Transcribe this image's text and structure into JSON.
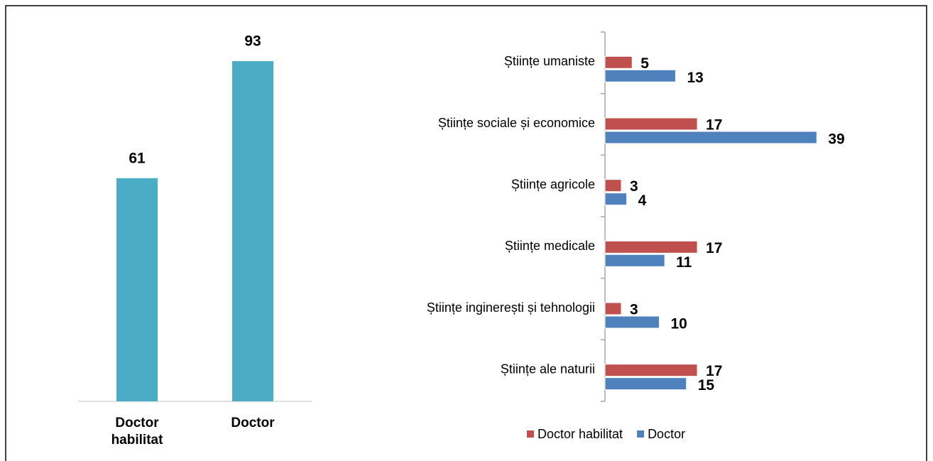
{
  "chart_data": [
    {
      "type": "bar",
      "categories": [
        "Doctor habilitat",
        "Doctor"
      ],
      "values": [
        61,
        93
      ],
      "color": "#4bacc6"
    },
    {
      "type": "hbar",
      "categories": [
        "Științe umaniste",
        "Științe sociale și economice",
        "Științe agricole",
        "Științe medicale",
        "Științe inginerești și tehnologii",
        "Științe ale naturii"
      ],
      "series": [
        {
          "name": "Doctor habilitat",
          "color": "#c0504d",
          "values": [
            5,
            17,
            3,
            17,
            3,
            17
          ]
        },
        {
          "name": "Doctor",
          "color": "#4f81bd",
          "values": [
            13,
            39,
            4,
            11,
            10,
            15
          ]
        }
      ]
    }
  ]
}
